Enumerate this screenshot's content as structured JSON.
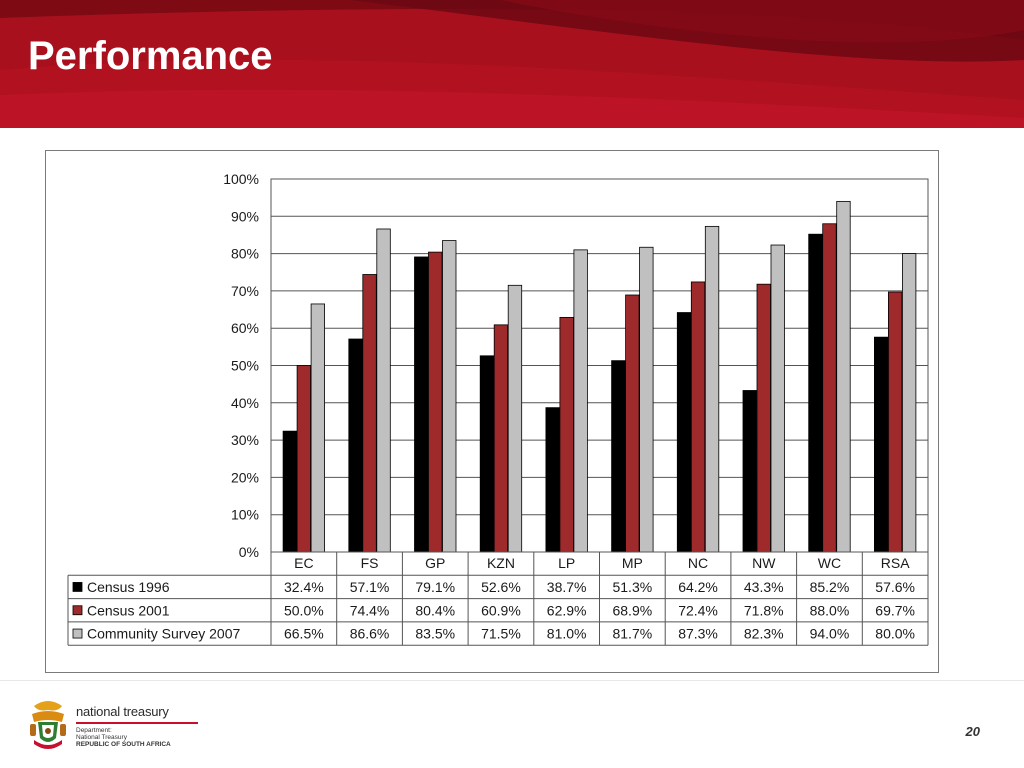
{
  "slide": {
    "title": "Performance",
    "page_number": "20",
    "header_color": "#a8101e"
  },
  "logo": {
    "name": "national treasury",
    "line1": "Department:",
    "line2": "National Treasury",
    "line3": "REPUBLIC OF SOUTH AFRICA",
    "icon": "coat-of-arms-icon"
  },
  "chart_data": {
    "type": "bar",
    "categories": [
      "EC",
      "FS",
      "GP",
      "KZN",
      "LP",
      "MP",
      "NC",
      "NW",
      "WC",
      "RSA"
    ],
    "series": [
      {
        "name": "Census 1996",
        "color": "#000000",
        "values": [
          32.4,
          57.1,
          79.1,
          52.6,
          38.7,
          51.3,
          64.2,
          43.3,
          85.2,
          57.6
        ],
        "labels": [
          "32.4%",
          "57.1%",
          "79.1%",
          "52.6%",
          "38.7%",
          "51.3%",
          "64.2%",
          "43.3%",
          "85.2%",
          "57.6%"
        ]
      },
      {
        "name": "Census 2001",
        "color": "#9e2a2b",
        "values": [
          50.0,
          74.4,
          80.4,
          60.9,
          62.9,
          68.9,
          72.4,
          71.8,
          88.0,
          69.7
        ],
        "labels": [
          "50.0%",
          "74.4%",
          "80.4%",
          "60.9%",
          "62.9%",
          "68.9%",
          "72.4%",
          "71.8%",
          "88.0%",
          "69.7%"
        ]
      },
      {
        "name": "Community Survey 2007",
        "color": "#c0c0c0",
        "values": [
          66.5,
          86.6,
          83.5,
          71.5,
          81.0,
          81.7,
          87.3,
          82.3,
          94.0,
          80.0
        ],
        "labels": [
          "66.5%",
          "86.6%",
          "83.5%",
          "71.5%",
          "81.0%",
          "81.7%",
          "87.3%",
          "82.3%",
          "94.0%",
          "80.0%"
        ]
      }
    ],
    "y_ticks": [
      "0%",
      "10%",
      "20%",
      "30%",
      "40%",
      "50%",
      "60%",
      "70%",
      "80%",
      "90%",
      "100%"
    ],
    "ylim": [
      0,
      100
    ],
    "grid": true,
    "legend": "data-table"
  }
}
